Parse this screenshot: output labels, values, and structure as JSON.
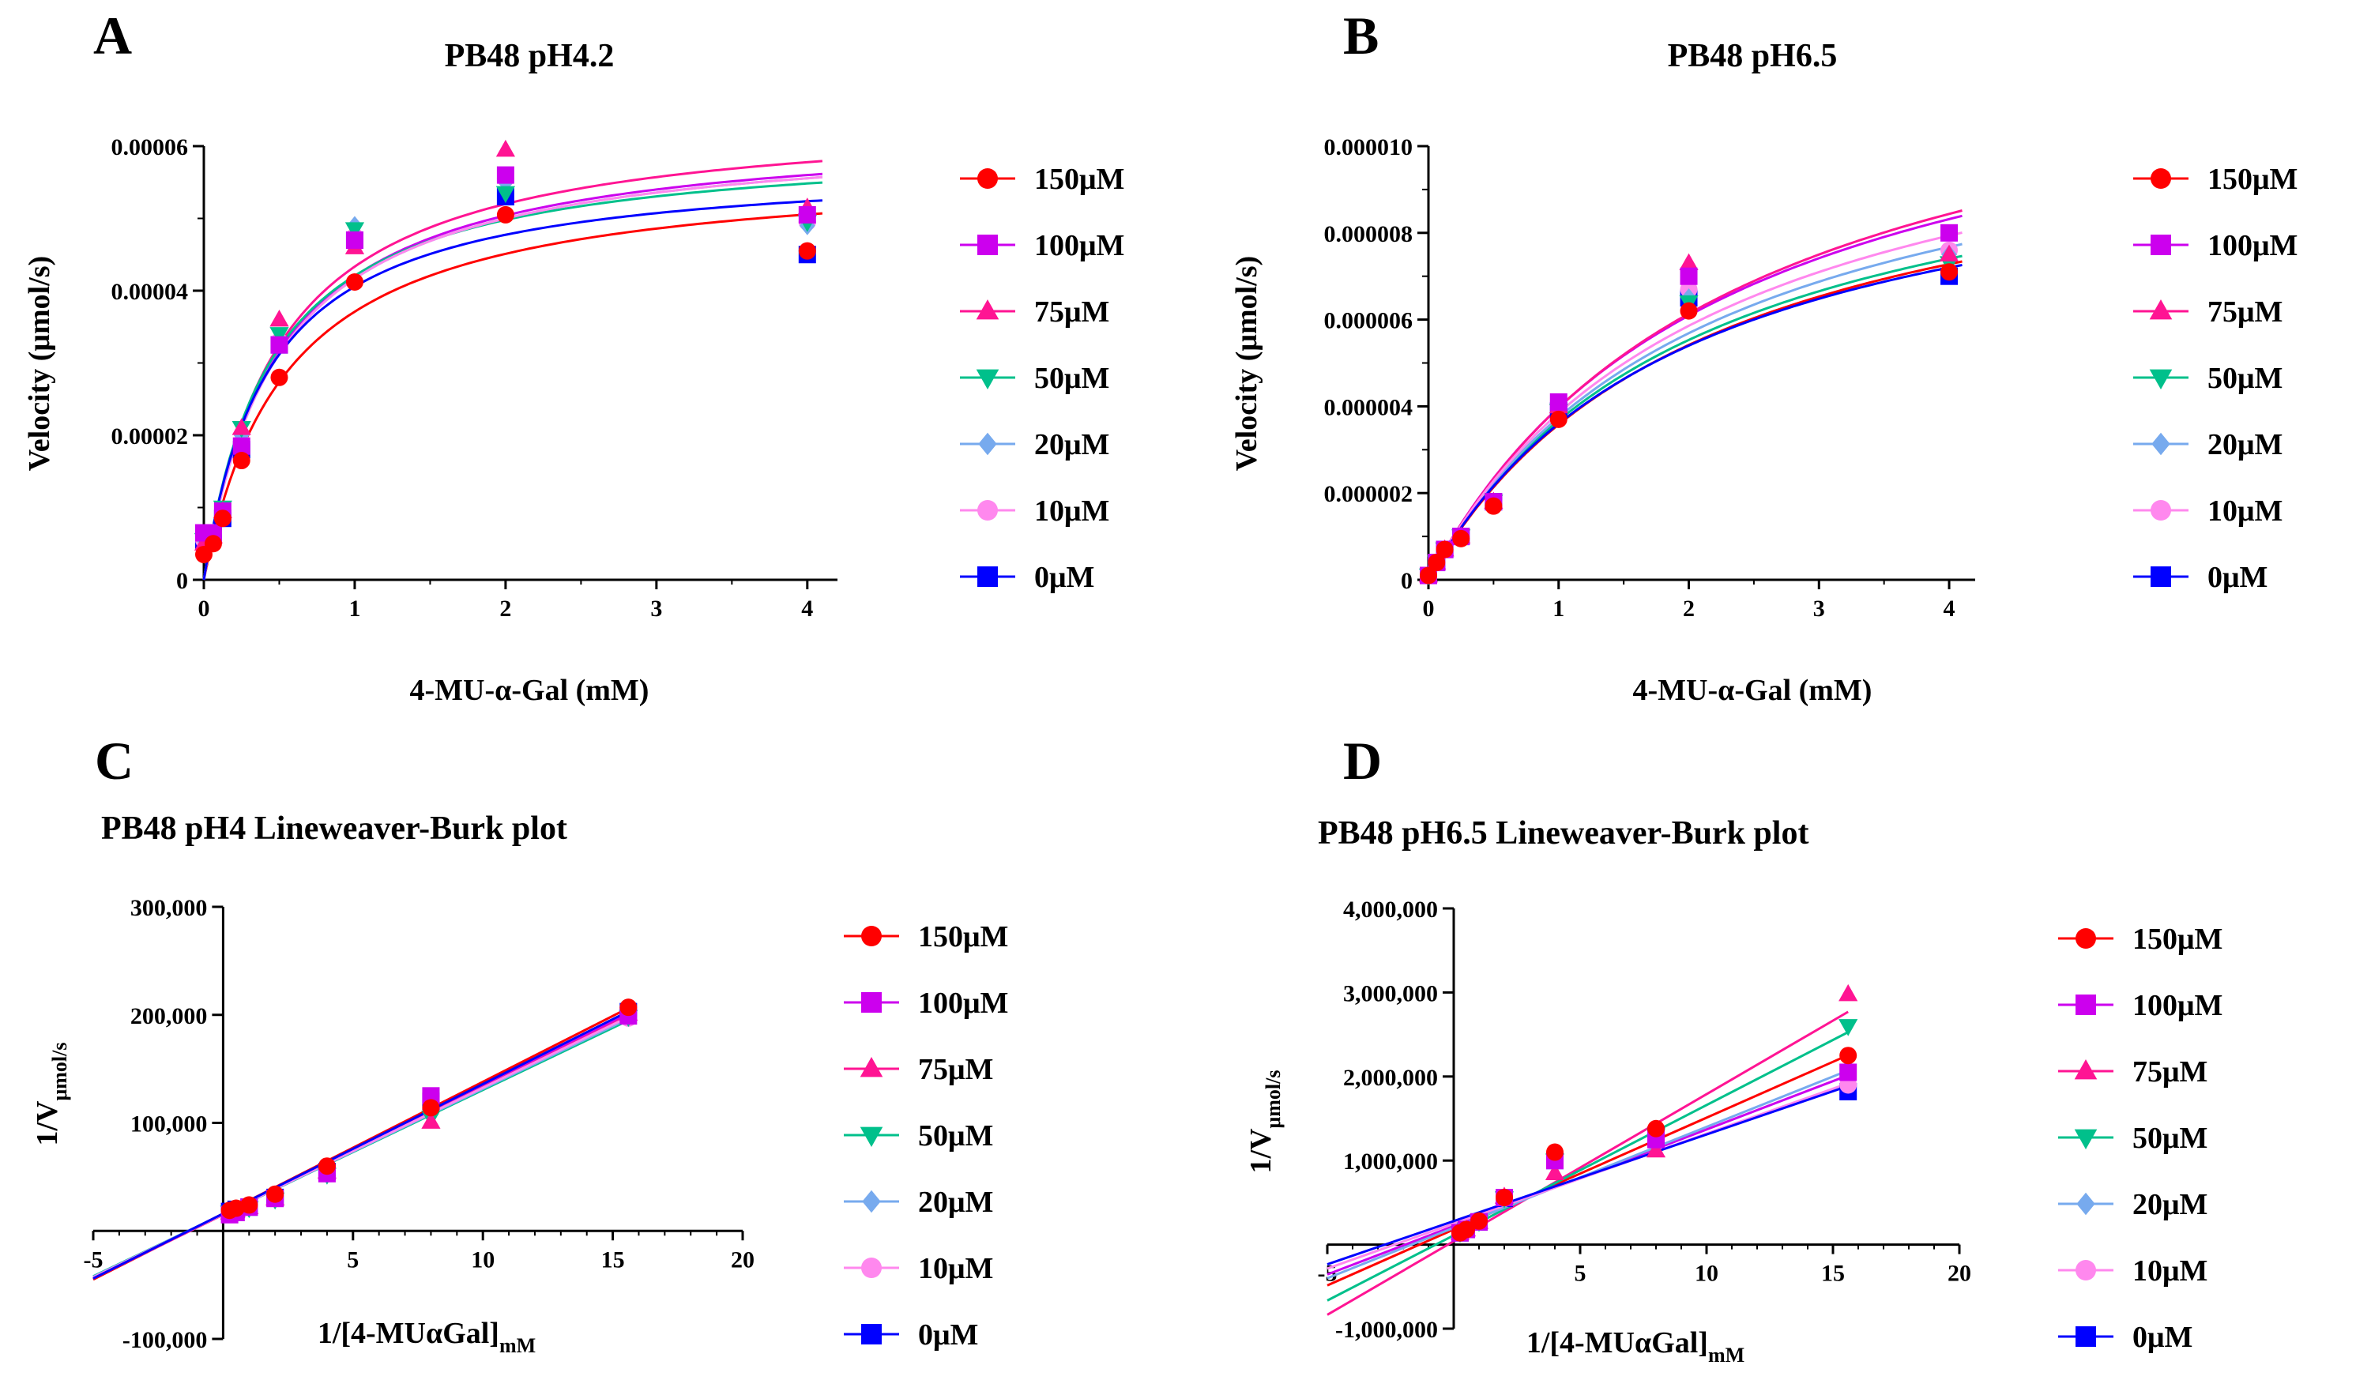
{
  "chart_data": [
    {
      "panel": "A",
      "type": "scatter",
      "title": "PB48 pH4.2",
      "xlabel": "4-MU-α-Gal (mM)",
      "ylabel": "Velocity (μmol/s)",
      "xlim": [
        0,
        4.2
      ],
      "ylim": [
        0,
        6e-05
      ],
      "xticks": [
        0,
        1,
        2,
        3,
        4
      ],
      "yticks": [
        0,
        2e-05,
        4e-05,
        6e-05
      ],
      "ytick_labels": [
        "0",
        "0.00002",
        "0.00004",
        "0.00006"
      ],
      "x": [
        0,
        0.0625,
        0.125,
        0.25,
        0.5,
        1,
        2,
        4
      ],
      "series": [
        {
          "name": "150μM",
          "color": "#ff0000",
          "marker": "circle",
          "values": [
            3.5e-06,
            5e-06,
            8.5e-06,
            1.65e-05,
            2.8e-05,
            4.12e-05,
            5.05e-05,
            4.55e-05
          ],
          "fit": {
            "vmax": 5.75e-05,
            "km": 0.55
          }
        },
        {
          "name": "100μM",
          "color": "#cc00ee",
          "marker": "square",
          "values": [
            6.5e-06,
            6.5e-06,
            9.5e-06,
            1.85e-05,
            3.25e-05,
            4.7e-05,
            5.6e-05,
            5.05e-05
          ],
          "fit": {
            "vmax": 6.3e-05,
            "km": 0.5
          }
        },
        {
          "name": "75μM",
          "color": "#ff1493",
          "marker": "triangle",
          "values": [
            5e-06,
            6e-06,
            9.5e-06,
            2.1e-05,
            3.6e-05,
            4.6e-05,
            5.95e-05,
            5.15e-05
          ],
          "fit": {
            "vmax": 6.5e-05,
            "km": 0.5
          }
        },
        {
          "name": "50μM",
          "color": "#00c08b",
          "marker": "invtriangle",
          "values": [
            5.5e-06,
            6.5e-06,
            1e-05,
            2.1e-05,
            3.4e-05,
            4.85e-05,
            5.35e-05,
            4.95e-05
          ],
          "fit": {
            "vmax": 6.1e-05,
            "km": 0.45
          }
        },
        {
          "name": "20μM",
          "color": "#77aaee",
          "marker": "diamond",
          "values": [
            5.5e-06,
            6.5e-06,
            9.5e-06,
            2e-05,
            3.3e-05,
            4.9e-05,
            5.5e-05,
            4.9e-05
          ],
          "fit": {
            "vmax": 6.25e-05,
            "km": 0.5
          }
        },
        {
          "name": "10μM",
          "color": "#ff88ee",
          "marker": "circle",
          "values": [
            5.5e-06,
            6.5e-06,
            9.5e-06,
            1.9e-05,
            3.3e-05,
            4.75e-05,
            5.55e-05,
            4.95e-05
          ],
          "fit": {
            "vmax": 6.25e-05,
            "km": 0.5
          }
        },
        {
          "name": "0μM",
          "color": "#0000ff",
          "marker": "square",
          "values": [
            5.5e-06,
            6.5e-06,
            8.5e-06,
            1.8e-05,
            3.25e-05,
            4.7e-05,
            5.3e-05,
            4.5e-05
          ],
          "fit": {
            "vmax": 5.8e-05,
            "km": 0.43
          }
        }
      ]
    },
    {
      "panel": "B",
      "type": "scatter",
      "title": "PB48 pH6.5",
      "xlabel": "4-MU-α-Gal (mM)",
      "ylabel": "Velocity (μmol/s)",
      "xlim": [
        0,
        4.2
      ],
      "ylim": [
        0,
        1e-05
      ],
      "xticks": [
        0,
        1,
        2,
        3,
        4
      ],
      "yticks": [
        0,
        2e-06,
        4e-06,
        6e-06,
        8e-06,
        1e-05
      ],
      "ytick_labels": [
        "0",
        "0.000002",
        "0.000004",
        "0.000006",
        "0.000008",
        "0.000010"
      ],
      "x": [
        0,
        0.0625,
        0.125,
        0.25,
        0.5,
        1,
        2,
        4
      ],
      "series": [
        {
          "name": "150μM",
          "color": "#ff0000",
          "marker": "circle",
          "values": [
            1e-07,
            4e-07,
            7e-07,
            9.5e-07,
            1.7e-06,
            3.7e-06,
            6.2e-06,
            7.1e-06
          ],
          "fit": {
            "vmax": 1.11e-05,
            "km": 2.1
          }
        },
        {
          "name": "100μM",
          "color": "#cc00ee",
          "marker": "square",
          "values": [
            1e-07,
            4e-07,
            7e-07,
            1e-06,
            1.8e-06,
            4.1e-06,
            7e-06,
            8e-06
          ],
          "fit": {
            "vmax": 1.31e-05,
            "km": 2.3
          }
        },
        {
          "name": "75μM",
          "color": "#ff1493",
          "marker": "triangle",
          "values": [
            1e-07,
            4e-07,
            7e-07,
            1e-06,
            1.8e-06,
            4e-06,
            7.3e-06,
            7.5e-06
          ],
          "fit": {
            "vmax": 1.35e-05,
            "km": 2.4
          }
        },
        {
          "name": "50μM",
          "color": "#00c08b",
          "marker": "invtriangle",
          "values": [
            1e-07,
            4e-07,
            7e-07,
            1e-06,
            1.8e-06,
            3.9e-06,
            6.4e-06,
            7.3e-06
          ],
          "fit": {
            "vmax": 1.12e-05,
            "km": 2.05
          }
        },
        {
          "name": "20μM",
          "color": "#77aaee",
          "marker": "diamond",
          "values": [
            1e-07,
            4e-07,
            7e-07,
            1e-06,
            1.8e-06,
            3.9e-06,
            6.5e-06,
            7.5e-06
          ],
          "fit": {
            "vmax": 1.18e-05,
            "km": 2.15
          }
        },
        {
          "name": "10μM",
          "color": "#ff88ee",
          "marker": "circle",
          "values": [
            1e-07,
            4e-07,
            7e-07,
            1e-06,
            1.8e-06,
            4e-06,
            6.7e-06,
            7.6e-06
          ],
          "fit": {
            "vmax": 1.23e-05,
            "km": 2.2
          }
        },
        {
          "name": "0μM",
          "color": "#0000ff",
          "marker": "square",
          "values": [
            1e-07,
            4e-07,
            7e-07,
            1e-06,
            1.8e-06,
            3.9e-06,
            6.5e-06,
            7e-06
          ],
          "fit": {
            "vmax": 1.08e-05,
            "km": 2.0
          }
        }
      ]
    },
    {
      "panel": "C",
      "type": "scatter",
      "title": "PB48 pH4  Lineweaver-Burk plot",
      "xlabel": "1/[4-MUαGal]",
      "xlabel_sub": "mM",
      "ylabel": "1/V",
      "ylabel_sub": "μmol/s",
      "xlim": [
        -5,
        20
      ],
      "ylim": [
        -100000,
        300000
      ],
      "xticks": [
        -5,
        5,
        10,
        15,
        20
      ],
      "xtick_labels": [
        "-5",
        "5",
        "10",
        "15",
        "20"
      ],
      "yticks": [
        -100000,
        100000,
        200000,
        300000
      ],
      "ytick_labels": [
        "-100,000",
        "100,000",
        "200,000",
        "300,000"
      ],
      "x": [
        0.25,
        0.5,
        1,
        2,
        4,
        8,
        15.6
      ],
      "series": [
        {
          "name": "150μM",
          "color": "#ff0000",
          "marker": "circle",
          "values": [
            19000,
            21000,
            24000,
            34000,
            60000,
            114000,
            207000
          ],
          "line": {
            "slope": 12200,
            "intercept": 16000
          }
        },
        {
          "name": "100μM",
          "color": "#cc00ee",
          "marker": "square",
          "values": [
            15000,
            17000,
            22000,
            30000,
            53000,
            125000,
            199000
          ],
          "line": {
            "slope": 11900,
            "intercept": 15500
          }
        },
        {
          "name": "75μM",
          "color": "#ff1493",
          "marker": "triangle",
          "values": [
            17000,
            19000,
            22000,
            30000,
            55000,
            101000,
            201000
          ],
          "line": {
            "slope": 11800,
            "intercept": 15000
          }
        },
        {
          "name": "50μM",
          "color": "#00c08b",
          "marker": "invtriangle",
          "values": [
            17000,
            19000,
            21000,
            29000,
            52000,
            105000,
            198000
          ],
          "line": {
            "slope": 11500,
            "intercept": 15500
          }
        },
        {
          "name": "20μM",
          "color": "#77aaee",
          "marker": "diamond",
          "values": [
            17000,
            19000,
            21000,
            30000,
            53000,
            108000,
            199000
          ],
          "line": {
            "slope": 11600,
            "intercept": 15500
          }
        },
        {
          "name": "10μM",
          "color": "#ff88ee",
          "marker": "circle",
          "values": [
            17000,
            19000,
            22000,
            30000,
            54000,
            122000,
            197000
          ],
          "line": {
            "slope": 11700,
            "intercept": 15500
          }
        },
        {
          "name": "0μM",
          "color": "#0000ff",
          "marker": "square",
          "values": [
            18000,
            20000,
            22000,
            31000,
            55000,
            120000,
            203000
          ],
          "line": {
            "slope": 12000,
            "intercept": 16000
          }
        }
      ]
    },
    {
      "panel": "D",
      "type": "scatter",
      "title": "PB48  pH6.5 Lineweaver-Burk plot",
      "xlabel": "1/[4-MUαGal]",
      "xlabel_sub": "mM",
      "ylabel": "1/V",
      "ylabel_sub": "μmol/s",
      "xlim": [
        -5,
        20
      ],
      "ylim": [
        -1000000,
        4000000
      ],
      "xticks": [
        -5,
        5,
        10,
        15,
        20
      ],
      "xtick_labels": [
        "-5",
        "5",
        "10",
        "15",
        "20"
      ],
      "yticks": [
        -1000000,
        1000000,
        2000000,
        3000000,
        4000000
      ],
      "ytick_labels": [
        "-1,000,000",
        "1,000,000",
        "2,000,000",
        "3,000,000",
        "4,000,000"
      ],
      "x": [
        0.25,
        0.5,
        1,
        2,
        4,
        8,
        15.6
      ],
      "series": [
        {
          "name": "150μM",
          "color": "#ff0000",
          "marker": "circle",
          "values": [
            140000,
            180000,
            280000,
            560000,
            1100000,
            1380000,
            2250000
          ],
          "line": {
            "slope": 133000,
            "intercept": 180000
          }
        },
        {
          "name": "100μM",
          "color": "#cc00ee",
          "marker": "square",
          "values": [
            140000,
            180000,
            270000,
            560000,
            1000000,
            1250000,
            2050000
          ],
          "line": {
            "slope": 115000,
            "intercept": 220000
          }
        },
        {
          "name": "75μM",
          "color": "#ff1493",
          "marker": "triangle",
          "values": [
            140000,
            180000,
            270000,
            570000,
            850000,
            1120000,
            2980000
          ],
          "line": {
            "slope": 175000,
            "intercept": 40000
          }
        },
        {
          "name": "50μM",
          "color": "#00c08b",
          "marker": "invtriangle",
          "values": [
            140000,
            180000,
            270000,
            550000,
            1000000,
            1300000,
            2600000
          ],
          "line": {
            "slope": 155000,
            "intercept": 110000
          }
        },
        {
          "name": "20μM",
          "color": "#77aaee",
          "marker": "diamond",
          "values": [
            140000,
            180000,
            270000,
            550000,
            1000000,
            1250000,
            2100000
          ],
          "line": {
            "slope": 120000,
            "intercept": 200000
          }
        },
        {
          "name": "10μM",
          "color": "#ff88ee",
          "marker": "circle",
          "values": [
            140000,
            180000,
            270000,
            550000,
            1000000,
            1250000,
            1900000
          ],
          "line": {
            "slope": 107000,
            "intercept": 250000
          }
        },
        {
          "name": "0μM",
          "color": "#0000ff",
          "marker": "square",
          "values": [
            140000,
            180000,
            270000,
            550000,
            1000000,
            1300000,
            1820000
          ],
          "line": {
            "slope": 103000,
            "intercept": 280000
          }
        }
      ]
    }
  ]
}
